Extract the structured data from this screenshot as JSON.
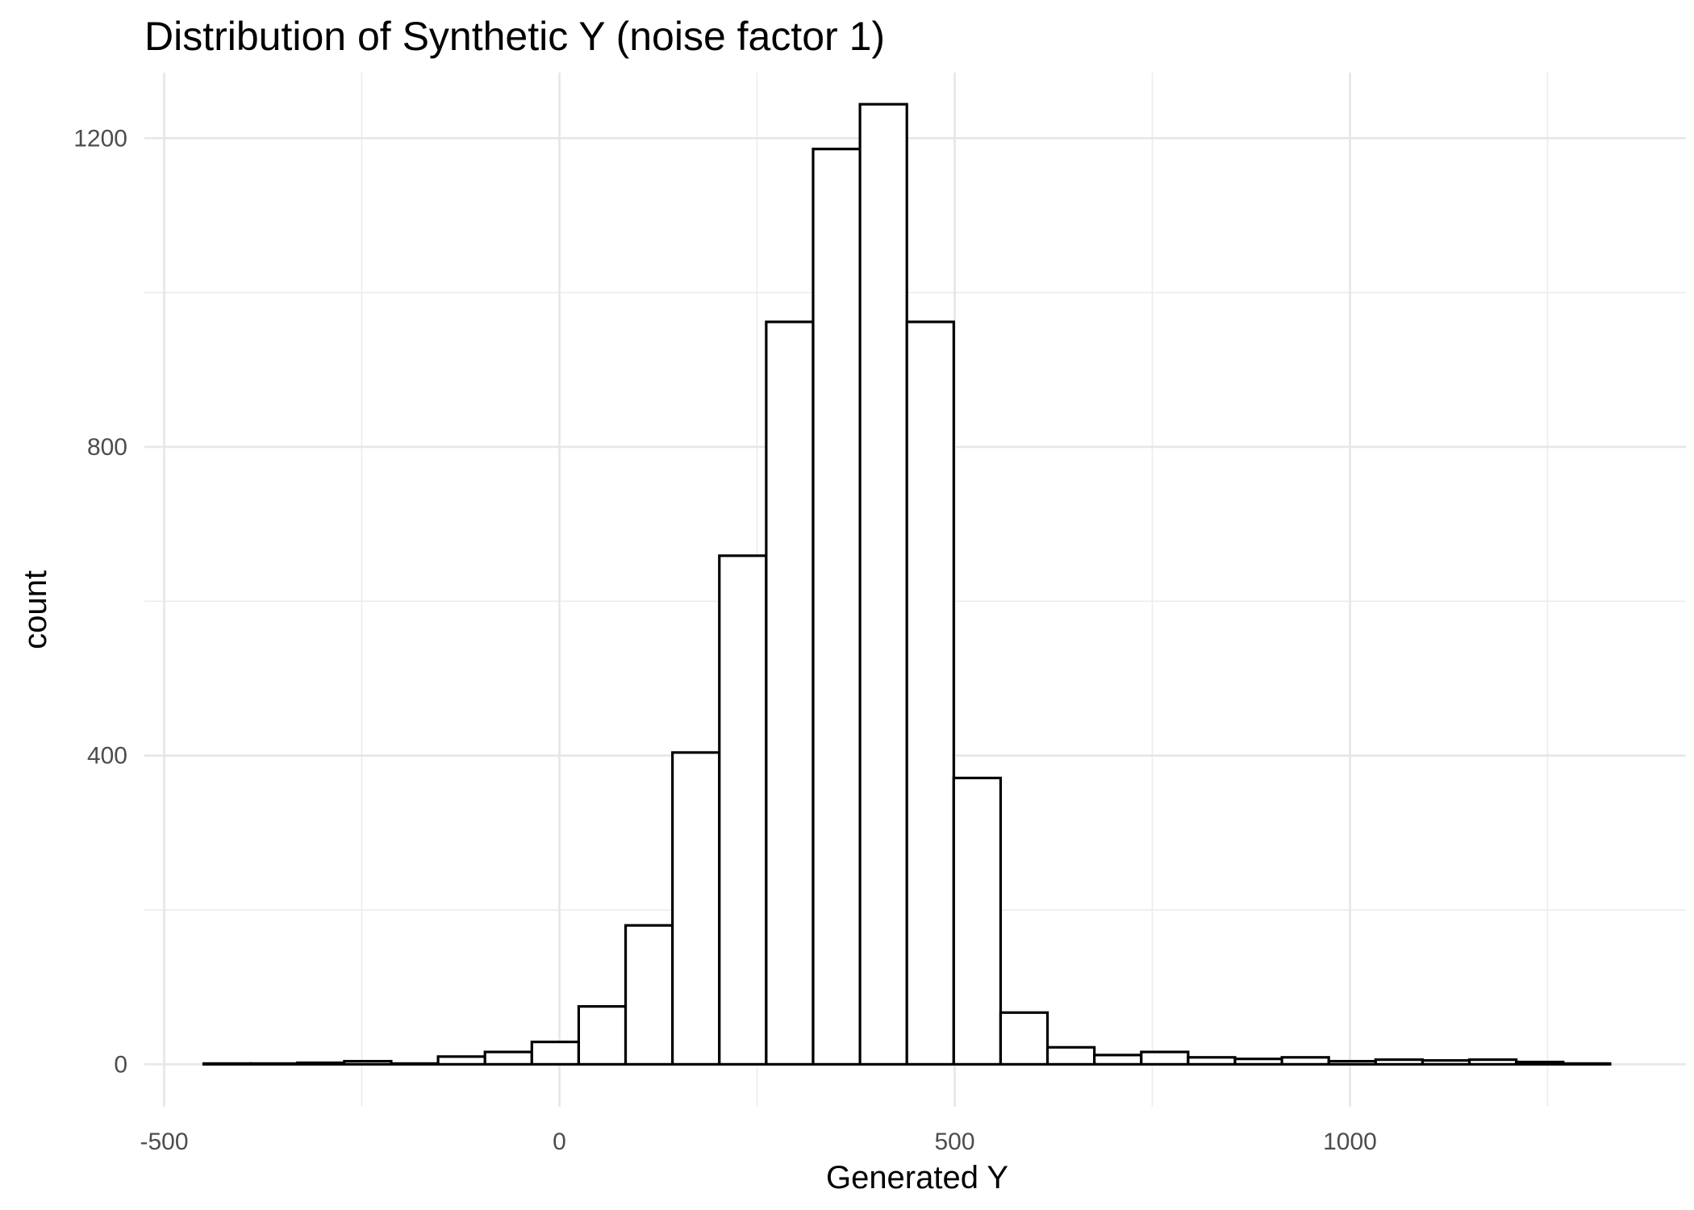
{
  "chart_data": {
    "type": "bar",
    "title": "Distribution of Synthetic Y (noise factor 1)",
    "xlabel": "Generated Y",
    "ylabel": "count",
    "xlim": [
      -525,
      1425
    ],
    "ylim": [
      -55,
      1285
    ],
    "x_major_ticks": [
      -500,
      0,
      500,
      1000
    ],
    "x_minor_ticks": [
      -250,
      250,
      750,
      1250
    ],
    "y_major_ticks": [
      0,
      400,
      800,
      1200
    ],
    "y_minor_ticks": [
      200,
      600,
      1000
    ],
    "x_tick_labels": [
      "-500",
      "0",
      "500",
      "1000"
    ],
    "y_tick_labels": [
      "0",
      "400",
      "800",
      "1200"
    ],
    "grid": true,
    "bin_width": 59.3,
    "bin_starts": [
      -450,
      -390.7,
      -331.4,
      -272.1,
      -212.8,
      -153.5,
      -94.2,
      -34.9,
      24.4,
      83.7,
      143,
      202.3,
      261.6,
      320.9,
      380.2,
      439.5,
      498.8,
      558.1,
      617.4,
      676.7,
      736,
      795.3,
      854.6,
      913.9,
      973.2,
      1032.5,
      1091.8,
      1151.1,
      1210.4,
      1269.7
    ],
    "values": [
      1,
      1,
      2,
      4,
      1,
      10,
      16,
      29,
      75,
      180,
      404,
      659,
      962,
      1186,
      1244,
      962,
      371,
      67,
      22,
      12,
      16,
      9,
      7,
      9,
      4,
      6,
      5,
      6,
      3,
      1
    ]
  }
}
